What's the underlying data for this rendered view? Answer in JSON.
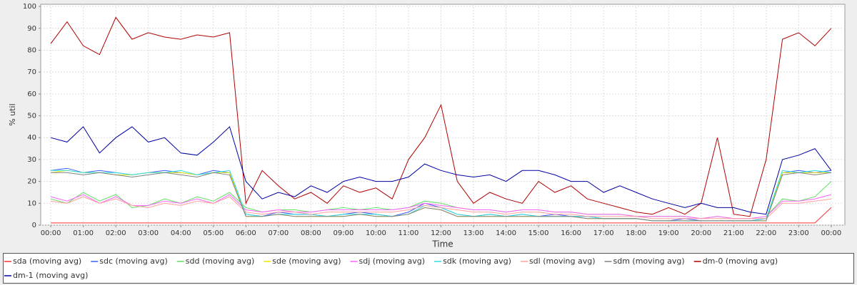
{
  "chart_data": {
    "type": "line",
    "y_label": "% util",
    "x_label": "Time",
    "x": [
      0,
      0.5,
      1,
      1.5,
      2,
      2.5,
      3,
      3.5,
      4,
      4.5,
      5,
      5.5,
      6,
      6.5,
      7,
      7.5,
      8,
      8.5,
      9,
      9.5,
      10,
      10.5,
      11,
      11.5,
      12,
      12.5,
      13,
      13.5,
      14,
      14.5,
      15,
      15.5,
      16,
      16.5,
      17,
      17.5,
      18,
      18.5,
      19,
      19.5,
      20,
      20.5,
      21,
      21.5,
      22,
      22.5,
      23,
      23.5,
      24
    ],
    "xlim": [
      -0.31,
      24.42
    ],
    "xticks": [
      {
        "value": 0,
        "label": "00:00"
      },
      {
        "value": 1,
        "label": "01:00"
      },
      {
        "value": 2,
        "label": "02:00"
      },
      {
        "value": 3,
        "label": "03:00"
      },
      {
        "value": 4,
        "label": "04:00"
      },
      {
        "value": 5,
        "label": "05:00"
      },
      {
        "value": 6,
        "label": "06:00"
      },
      {
        "value": 7,
        "label": "07:00"
      },
      {
        "value": 8,
        "label": "08:00"
      },
      {
        "value": 9,
        "label": "09:00"
      },
      {
        "value": 10,
        "label": "10:00"
      },
      {
        "value": 11,
        "label": "11:00"
      },
      {
        "value": 12,
        "label": "12:00"
      },
      {
        "value": 13,
        "label": "13:00"
      },
      {
        "value": 14,
        "label": "14:00"
      },
      {
        "value": 15,
        "label": "15:00"
      },
      {
        "value": 16,
        "label": "16:00"
      },
      {
        "value": 17,
        "label": "17:00"
      },
      {
        "value": 18,
        "label": "18:00"
      },
      {
        "value": 19,
        "label": "19:00"
      },
      {
        "value": 20,
        "label": "20:00"
      },
      {
        "value": 21,
        "label": "21:00"
      },
      {
        "value": 22,
        "label": "22:00"
      },
      {
        "value": 23,
        "label": "23:00"
      },
      {
        "value": 24,
        "label": "00:00"
      }
    ],
    "ylim": [
      0,
      101
    ],
    "yticks": [
      0,
      10,
      20,
      30,
      40,
      50,
      60,
      70,
      80,
      90,
      100
    ],
    "grid": true,
    "legend": "bottom",
    "series": [
      {
        "name": "sda (moving avg)",
        "color": "#ff3030",
        "values": [
          1,
          1,
          1,
          1,
          1,
          1,
          1,
          1,
          1,
          1,
          1,
          1,
          1,
          1,
          1,
          1,
          1,
          1,
          1,
          1,
          1,
          1,
          1,
          1,
          1,
          1,
          1,
          1,
          1,
          1,
          1,
          1,
          1,
          1,
          1,
          1,
          1,
          1,
          1,
          1,
          1,
          1,
          1,
          1,
          1,
          1,
          1,
          1,
          8
        ]
      },
      {
        "name": "sdc (moving avg)",
        "color": "#3c5cff",
        "values": [
          25,
          26,
          24,
          25,
          24,
          23,
          24,
          25,
          24,
          23,
          25,
          24,
          5,
          4,
          6,
          5,
          5,
          4,
          5,
          6,
          5,
          4,
          6,
          10,
          8,
          5,
          4,
          5,
          4,
          5,
          4,
          5,
          4,
          4,
          3,
          3,
          3,
          2,
          2,
          3,
          2,
          2,
          2,
          2,
          3,
          24,
          25,
          24,
          25
        ]
      },
      {
        "name": "sdd (moving avg)",
        "color": "#60e060",
        "values": [
          12,
          10,
          15,
          11,
          14,
          8,
          9,
          12,
          10,
          13,
          11,
          15,
          8,
          6,
          7,
          7,
          6,
          7,
          8,
          7,
          8,
          7,
          8,
          11,
          10,
          8,
          7,
          7,
          6,
          7,
          7,
          6,
          6,
          5,
          5,
          5,
          4,
          4,
          4,
          4,
          3,
          4,
          3,
          3,
          4,
          12,
          11,
          13,
          20
        ]
      },
      {
        "name": "sde (moving avg)",
        "color": "#e8e800",
        "values": [
          24,
          25,
          24,
          24,
          23,
          23,
          24,
          24,
          24,
          23,
          24,
          24,
          4,
          4,
          5,
          4,
          4,
          4,
          4,
          5,
          4,
          4,
          5,
          8,
          7,
          4,
          4,
          4,
          4,
          4,
          4,
          4,
          4,
          3,
          3,
          3,
          3,
          2,
          2,
          2,
          2,
          2,
          2,
          2,
          2,
          24,
          24,
          24,
          24
        ]
      },
      {
        "name": "sdj (moving avg)",
        "color": "#ff60ff",
        "values": [
          13,
          11,
          14,
          10,
          13,
          9,
          9,
          11,
          10,
          12,
          10,
          14,
          7,
          6,
          7,
          6,
          6,
          7,
          7,
          7,
          7,
          7,
          8,
          10,
          9,
          8,
          7,
          7,
          6,
          7,
          7,
          6,
          6,
          5,
          5,
          5,
          4,
          4,
          4,
          4,
          3,
          4,
          3,
          3,
          4,
          11,
          11,
          12,
          14
        ]
      },
      {
        "name": "sdk (moving avg)",
        "color": "#30e0e0",
        "values": [
          25,
          25,
          24,
          24,
          24,
          23,
          24,
          24,
          25,
          23,
          24,
          25,
          5,
          4,
          5,
          5,
          5,
          4,
          5,
          5,
          5,
          4,
          5,
          9,
          8,
          5,
          4,
          5,
          4,
          5,
          4,
          4,
          4,
          4,
          3,
          3,
          3,
          2,
          2,
          2,
          2,
          2,
          2,
          2,
          3,
          25,
          24,
          25,
          24
        ]
      },
      {
        "name": "sdl (moving avg)",
        "color": "#ffa0a0",
        "values": [
          11,
          10,
          13,
          10,
          12,
          9,
          8,
          10,
          9,
          11,
          10,
          13,
          6,
          5,
          6,
          6,
          5,
          6,
          6,
          6,
          6,
          6,
          7,
          9,
          8,
          7,
          6,
          6,
          5,
          6,
          6,
          5,
          5,
          4,
          4,
          4,
          4,
          3,
          3,
          3,
          3,
          3,
          3,
          3,
          3,
          10,
          10,
          11,
          12
        ]
      },
      {
        "name": "sdm (moving avg)",
        "color": "#808080",
        "values": [
          24,
          24,
          23,
          24,
          23,
          22,
          23,
          24,
          23,
          22,
          24,
          23,
          4,
          4,
          5,
          4,
          4,
          4,
          4,
          5,
          4,
          4,
          5,
          8,
          7,
          4,
          4,
          4,
          4,
          4,
          4,
          4,
          4,
          3,
          3,
          3,
          3,
          2,
          2,
          2,
          2,
          2,
          2,
          2,
          2,
          23,
          24,
          23,
          24
        ]
      },
      {
        "name": "dm-0 (moving avg)",
        "color": "#b00000",
        "values": [
          83,
          93,
          82,
          78,
          95,
          85,
          88,
          86,
          85,
          87,
          86,
          88,
          10,
          25,
          18,
          12,
          15,
          10,
          18,
          15,
          17,
          12,
          30,
          40,
          55,
          20,
          10,
          15,
          12,
          10,
          20,
          15,
          18,
          12,
          10,
          8,
          6,
          5,
          8,
          5,
          10,
          40,
          5,
          4,
          30,
          85,
          88,
          82,
          90
        ]
      },
      {
        "name": "dm-1 (moving avg)",
        "color": "#0000a0",
        "values": [
          40,
          38,
          45,
          33,
          40,
          45,
          38,
          40,
          33,
          32,
          38,
          45,
          20,
          12,
          15,
          13,
          18,
          15,
          20,
          22,
          20,
          20,
          22,
          28,
          25,
          23,
          22,
          23,
          20,
          25,
          25,
          23,
          20,
          20,
          15,
          18,
          15,
          12,
          10,
          8,
          10,
          8,
          8,
          6,
          5,
          30,
          32,
          35,
          25
        ]
      }
    ]
  }
}
